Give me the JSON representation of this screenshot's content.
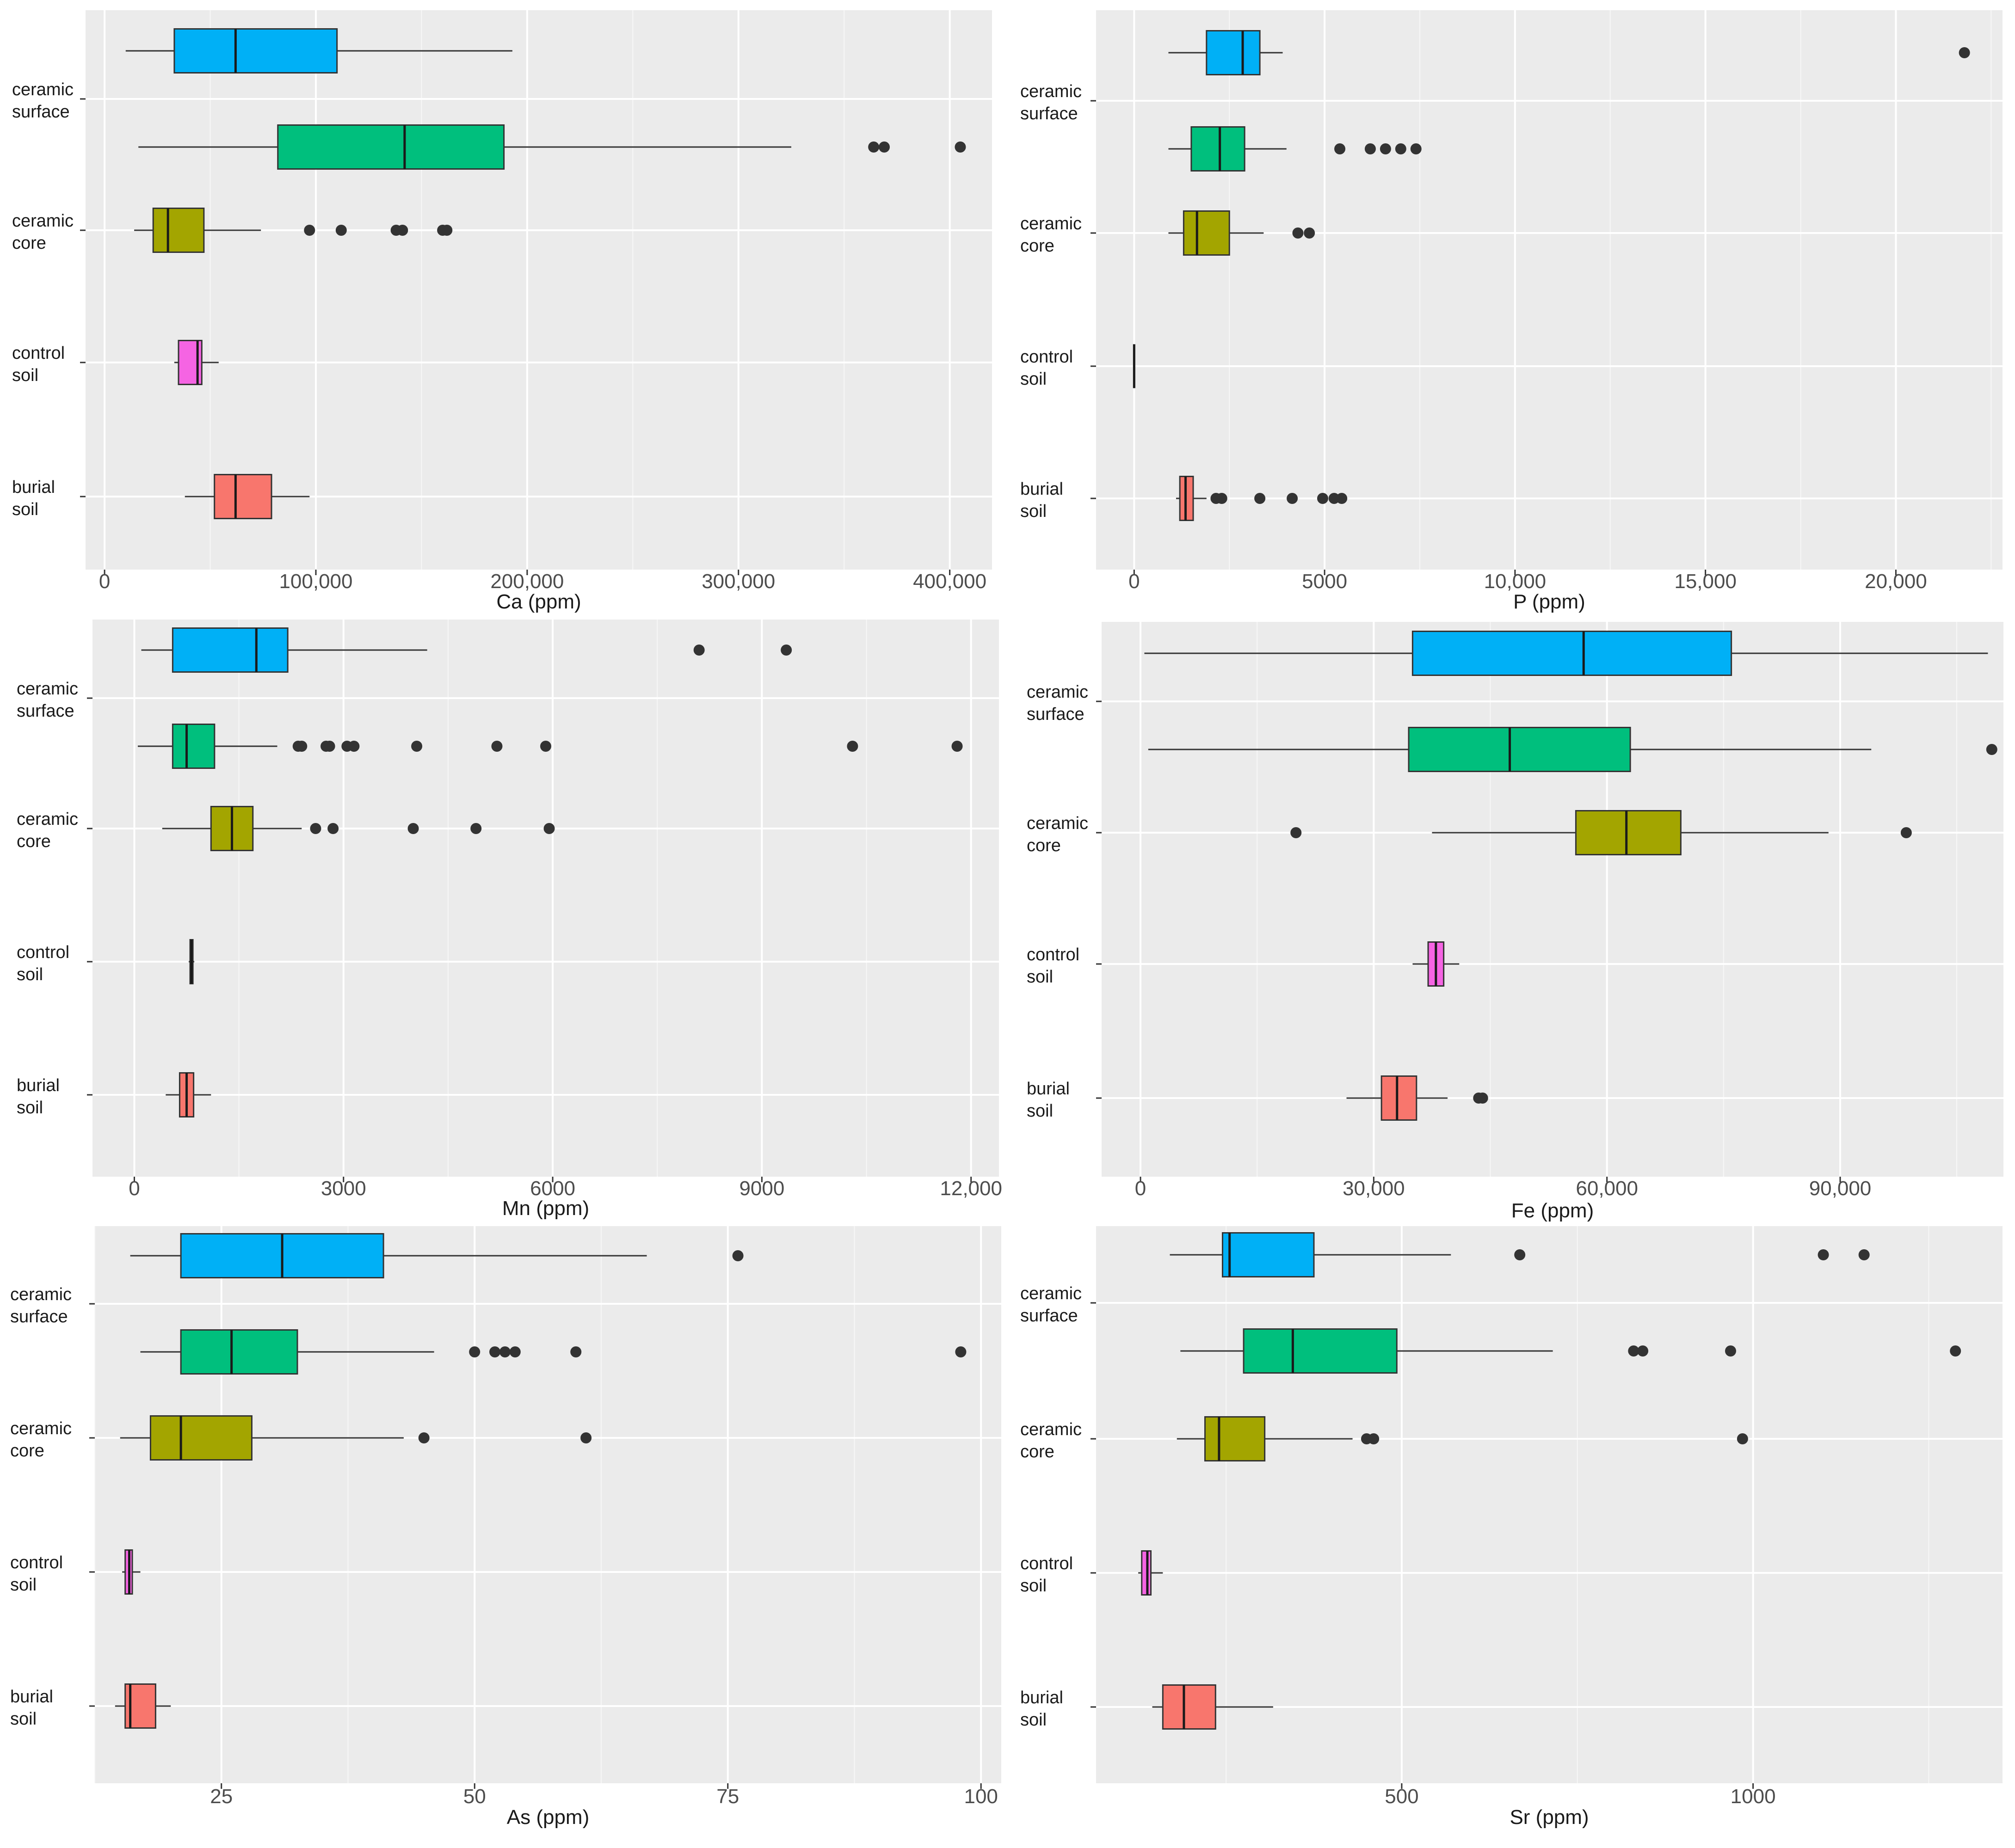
{
  "chart_data": [
    {
      "type": "box",
      "xlabel": "Ca (ppm)",
      "xlim": [
        -9000,
        420000
      ],
      "xticks": [
        0,
        100000,
        200000,
        300000,
        400000
      ],
      "xtick_labels": [
        "0",
        "100,000",
        "200,000",
        "300,000",
        "400,000"
      ],
      "grid": true,
      "categories": [
        [
          "ceramic",
          "surface"
        ],
        [
          "ceramic",
          "core"
        ],
        [
          "control",
          "soil"
        ],
        [
          "burial",
          "soil"
        ]
      ],
      "boxes": [
        {
          "category": 0,
          "offset": -0.18,
          "color": "#00B0F6",
          "whisker_low": 10000,
          "q1": 33000,
          "median": 62000,
          "q3": 110000,
          "whisker_high": 193000,
          "outliers": []
        },
        {
          "category": 0,
          "offset": 0.18,
          "color": "#00BF7D",
          "whisker_low": 16000,
          "q1": 82000,
          "median": 142000,
          "q3": 189000,
          "whisker_high": 325000,
          "outliers": [
            364000,
            369000,
            405000
          ]
        },
        {
          "category": 1,
          "offset": 0,
          "color": "#A3A500",
          "whisker_low": 14000,
          "q1": 23000,
          "median": 30000,
          "q3": 47000,
          "whisker_high": 74000,
          "outliers": [
            97000,
            112000,
            138000,
            141000,
            160000,
            162000
          ]
        },
        {
          "category": 2,
          "offset": 0,
          "color": "#F564E3",
          "whisker_low": 33000,
          "q1": 35000,
          "median": 44000,
          "q3": 46000,
          "whisker_high": 54000,
          "outliers": []
        },
        {
          "category": 3,
          "offset": 0,
          "color": "#F8766D",
          "whisker_low": 38000,
          "q1": 52000,
          "median": 62000,
          "q3": 79000,
          "whisker_high": 97000,
          "outliers": []
        }
      ]
    },
    {
      "type": "box",
      "xlabel": "P (ppm)",
      "xlim": [
        -1000,
        22800
      ],
      "xticks": [
        0,
        5000,
        10000,
        15000,
        20000
      ],
      "xtick_labels": [
        "0",
        "5000",
        "10,000",
        "15,000",
        "20,000"
      ],
      "grid": true,
      "categories": [
        [
          "ceramic",
          "surface"
        ],
        [
          "ceramic",
          "core"
        ],
        [
          "control",
          "soil"
        ],
        [
          "burial",
          "soil"
        ]
      ],
      "boxes": [
        {
          "category": 0,
          "offset": -0.18,
          "color": "#00B0F6",
          "whisker_low": 900,
          "q1": 1900,
          "median": 2850,
          "q3": 3300,
          "whisker_high": 3900,
          "outliers": [
            21800
          ]
        },
        {
          "category": 0,
          "offset": 0.18,
          "color": "#00BF7D",
          "whisker_low": 900,
          "q1": 1500,
          "median": 2250,
          "q3": 2900,
          "whisker_high": 4000,
          "outliers": [
            5400,
            6200,
            6600,
            7000,
            7400
          ]
        },
        {
          "category": 1,
          "offset": 0,
          "color": "#A3A500",
          "whisker_low": 900,
          "q1": 1300,
          "median": 1650,
          "q3": 2500,
          "whisker_high": 3400,
          "outliers": [
            4300,
            4600
          ]
        },
        {
          "category": 2,
          "offset": 0,
          "color": "#F564E3",
          "whisker_low": 0,
          "q1": 0,
          "median": 0,
          "q3": 0,
          "whisker_high": 0,
          "outliers": []
        },
        {
          "category": 3,
          "offset": 0,
          "color": "#F8766D",
          "whisker_low": 1100,
          "q1": 1200,
          "median": 1350,
          "q3": 1550,
          "whisker_high": 1900,
          "outliers": [
            2150,
            2300,
            3300,
            4150,
            4950,
            5250,
            5450
          ]
        }
      ]
    },
    {
      "type": "box",
      "xlabel": "Mn (ppm)",
      "xlim": [
        -600,
        12400
      ],
      "xticks": [
        0,
        3000,
        6000,
        9000,
        12000
      ],
      "xtick_labels": [
        "0",
        "3000",
        "6000",
        "9000",
        "12,000"
      ],
      "grid": true,
      "categories": [
        [
          "ceramic",
          "surface"
        ],
        [
          "ceramic",
          "core"
        ],
        [
          "control",
          "soil"
        ],
        [
          "burial",
          "soil"
        ]
      ],
      "boxes": [
        {
          "category": 0,
          "offset": -0.18,
          "color": "#00B0F6",
          "whisker_low": 100,
          "q1": 550,
          "median": 1750,
          "q3": 2200,
          "whisker_high": 4200,
          "outliers": [
            8100,
            9350
          ]
        },
        {
          "category": 0,
          "offset": 0.18,
          "color": "#00BF7D",
          "whisker_low": 50,
          "q1": 550,
          "median": 750,
          "q3": 1150,
          "whisker_high": 2050,
          "outliers": [
            2350,
            2400,
            2750,
            2800,
            3050,
            3150,
            4050,
            5200,
            5900,
            10300,
            11800
          ]
        },
        {
          "category": 1,
          "offset": 0,
          "color": "#A3A500",
          "whisker_low": 400,
          "q1": 1100,
          "median": 1400,
          "q3": 1700,
          "whisker_high": 2400,
          "outliers": [
            2600,
            2850,
            4000,
            4900,
            5950
          ]
        },
        {
          "category": 2,
          "offset": 0,
          "color": "#F564E3",
          "whisker_low": 780,
          "q1": 800,
          "median": 820,
          "q3": 840,
          "whisker_high": 860,
          "outliers": []
        },
        {
          "category": 3,
          "offset": 0,
          "color": "#F8766D",
          "whisker_low": 450,
          "q1": 650,
          "median": 750,
          "q3": 850,
          "whisker_high": 1100,
          "outliers": []
        }
      ]
    },
    {
      "type": "box",
      "xlabel": "Fe (ppm)",
      "xlim": [
        -5000,
        111000
      ],
      "xticks": [
        0,
        30000,
        60000,
        90000
      ],
      "xtick_labels": [
        "0",
        "30,000",
        "60,000",
        "90,000"
      ],
      "grid": true,
      "categories": [
        [
          "ceramic",
          "surface"
        ],
        [
          "ceramic",
          "core"
        ],
        [
          "control",
          "soil"
        ],
        [
          "burial",
          "soil"
        ]
      ],
      "boxes": [
        {
          "category": 0,
          "offset": -0.18,
          "color": "#00B0F6",
          "whisker_low": 500,
          "q1": 35000,
          "median": 57000,
          "q3": 76000,
          "whisker_high": 109000,
          "outliers": []
        },
        {
          "category": 0,
          "offset": 0.18,
          "color": "#00BF7D",
          "whisker_low": 1000,
          "q1": 34500,
          "median": 47500,
          "q3": 63000,
          "whisker_high": 94000,
          "outliers": [
            109500
          ]
        },
        {
          "category": 1,
          "offset": 0,
          "color": "#A3A500",
          "whisker_low": 37500,
          "q1": 56000,
          "median": 62500,
          "q3": 69500,
          "whisker_high": 88500,
          "outliers": [
            20000,
            98500
          ]
        },
        {
          "category": 2,
          "offset": 0,
          "color": "#F564E3",
          "whisker_low": 35000,
          "q1": 37000,
          "median": 38000,
          "q3": 39000,
          "whisker_high": 41000,
          "outliers": []
        },
        {
          "category": 3,
          "offset": 0,
          "color": "#F8766D",
          "whisker_low": 26500,
          "q1": 31000,
          "median": 33000,
          "q3": 35500,
          "whisker_high": 39500,
          "outliers": [
            43500,
            44000
          ]
        }
      ]
    },
    {
      "type": "box",
      "xlabel": "As (ppm)",
      "xlim": [
        12.5,
        102
      ],
      "xticks": [
        25,
        50,
        75,
        100
      ],
      "xtick_labels": [
        "25",
        "50",
        "75",
        "100"
      ],
      "grid": true,
      "categories": [
        [
          "ceramic",
          "surface"
        ],
        [
          "ceramic",
          "core"
        ],
        [
          "control",
          "soil"
        ],
        [
          "burial",
          "soil"
        ]
      ],
      "boxes": [
        {
          "category": 0,
          "offset": -0.18,
          "color": "#00B0F6",
          "whisker_low": 16,
          "q1": 21,
          "median": 31,
          "q3": 41,
          "whisker_high": 67,
          "outliers": [
            76
          ]
        },
        {
          "category": 0,
          "offset": 0.18,
          "color": "#00BF7D",
          "whisker_low": 17,
          "q1": 21,
          "median": 26,
          "q3": 32.5,
          "whisker_high": 46,
          "outliers": [
            50,
            52,
            53,
            54,
            60,
            98
          ]
        },
        {
          "category": 1,
          "offset": 0,
          "color": "#A3A500",
          "whisker_low": 15,
          "q1": 18,
          "median": 21,
          "q3": 28,
          "whisker_high": 43,
          "outliers": [
            45,
            61
          ]
        },
        {
          "category": 2,
          "offset": 0,
          "color": "#F564E3",
          "whisker_low": 15.2,
          "q1": 15.5,
          "median": 15.9,
          "q3": 16.2,
          "whisker_high": 17,
          "outliers": []
        },
        {
          "category": 3,
          "offset": 0,
          "color": "#F8766D",
          "whisker_low": 14.5,
          "q1": 15.5,
          "median": 16,
          "q3": 18.5,
          "whisker_high": 20,
          "outliers": []
        }
      ]
    },
    {
      "type": "box",
      "xlabel": "Sr (ppm)",
      "xlim": [
        65,
        1355
      ],
      "xticks": [
        500,
        1000
      ],
      "xtick_labels": [
        "500",
        "1000"
      ],
      "grid": true,
      "categories": [
        [
          "ceramic",
          "surface"
        ],
        [
          "ceramic",
          "core"
        ],
        [
          "control",
          "soil"
        ],
        [
          "burial",
          "soil"
        ]
      ],
      "boxes": [
        {
          "category": 0,
          "offset": -0.18,
          "color": "#00B0F6",
          "whisker_low": 170,
          "q1": 245,
          "median": 255,
          "q3": 375,
          "whisker_high": 570,
          "outliers": [
            668,
            1100,
            1158
          ]
        },
        {
          "category": 0,
          "offset": 0.18,
          "color": "#00BF7D",
          "whisker_low": 185,
          "q1": 275,
          "median": 345,
          "q3": 493,
          "whisker_high": 715,
          "outliers": [
            830,
            843,
            968,
            1288
          ]
        },
        {
          "category": 1,
          "offset": 0,
          "color": "#A3A500",
          "whisker_low": 180,
          "q1": 220,
          "median": 240,
          "q3": 305,
          "whisker_high": 430,
          "outliers": [
            450,
            460,
            985
          ]
        },
        {
          "category": 2,
          "offset": 0,
          "color": "#F564E3",
          "whisker_low": 125,
          "q1": 130,
          "median": 138,
          "q3": 143,
          "whisker_high": 160,
          "outliers": []
        },
        {
          "category": 3,
          "offset": 0,
          "color": "#F8766D",
          "whisker_low": 145,
          "q1": 160,
          "median": 190,
          "q3": 235,
          "whisker_high": 317,
          "outliers": []
        }
      ]
    }
  ]
}
